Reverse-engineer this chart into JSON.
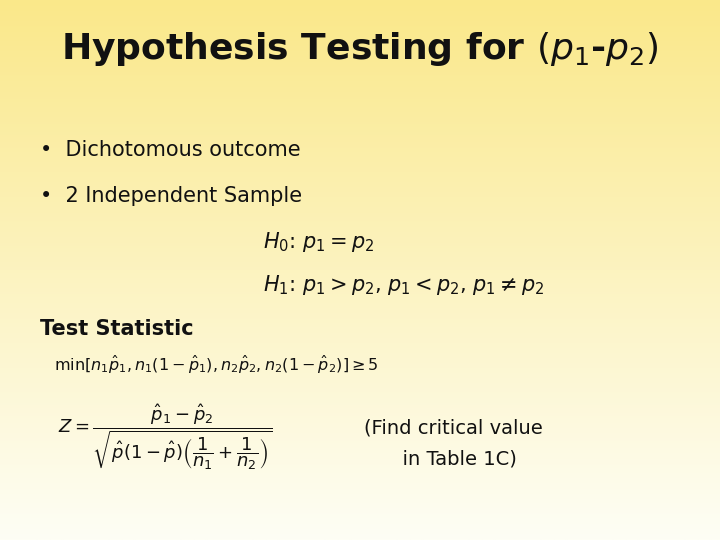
{
  "title": "Hypothesis Testing for (p₁-p₂)",
  "background_top": "#FAE88A",
  "background_bottom": "#FEFEF5",
  "bullet1": "Dichotomous outcome",
  "bullet2": "2 Independent Sample",
  "h0_text": "$H_0$: $p_1=p_2$",
  "h1_text": "$H_1$: $p_1>p_2$, $p_1<p_2$, $p_1\\neq p_2$",
  "test_stat_label": "Test Statistic",
  "min_condition": "$\\min[n_1\\hat{p}_1, n_1(1-\\hat{p}_1), n_2\\hat{p}_2, n_2(1-\\hat{p}_2)] \\geq 5$",
  "z_formula": "$Z = \\dfrac{\\hat{p}_1 - \\hat{p}_2}{\\sqrt{\\hat{p}(1-\\hat{p})\\left(\\dfrac{1}{n_1}+\\dfrac{1}{n_2}\\right)}}$",
  "find_critical_line1": "(Find critical value",
  "find_critical_line2": "  in Table 1C)",
  "text_color": "#111111",
  "title_fontsize": 26,
  "bullet_fontsize": 15,
  "formula_fontsize": 13,
  "min_fontsize": 11.5,
  "find_fontsize": 14
}
